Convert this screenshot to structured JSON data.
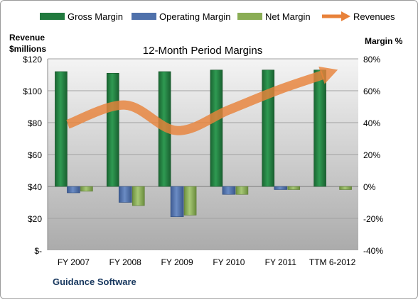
{
  "chart_data": {
    "type": "bar",
    "title": "12-Month Period Margins",
    "company": "Guidance Software",
    "categories": [
      "FY 2007",
      "FY 2008",
      "FY 2009",
      "FY 2010",
      "FY 2011",
      "TTM 6-2012"
    ],
    "left_axis": {
      "label_line1": "Revenue",
      "label_line2": "$millions",
      "ticks": [
        "$-",
        "$20",
        "$40",
        "$60",
        "$80",
        "$100",
        "$120"
      ],
      "range": [
        0,
        120
      ]
    },
    "right_axis": {
      "label": "Margin %",
      "ticks": [
        "-40%",
        "-20%",
        "0%",
        "20%",
        "40%",
        "60%",
        "80%"
      ],
      "range": [
        -40,
        80
      ]
    },
    "series": [
      {
        "name": "Gross Margin",
        "axis": "right",
        "color": "#217a3e",
        "values": [
          72,
          71,
          72,
          73,
          73,
          73
        ]
      },
      {
        "name": "Operating Margin",
        "axis": "right",
        "color": "#4f71ab",
        "values": [
          -4,
          -10,
          -19,
          -5,
          -2,
          0
        ]
      },
      {
        "name": "Net Margin",
        "axis": "right",
        "color": "#8aad55",
        "values": [
          -3,
          -12,
          -18,
          -5,
          -2,
          -2
        ]
      },
      {
        "name": "Revenues",
        "axis": "left",
        "color": "#e8823a",
        "type": "line",
        "values": [
          79,
          91,
          75,
          88,
          101,
          112
        ]
      }
    ],
    "grid": true,
    "legend_position": "top"
  }
}
